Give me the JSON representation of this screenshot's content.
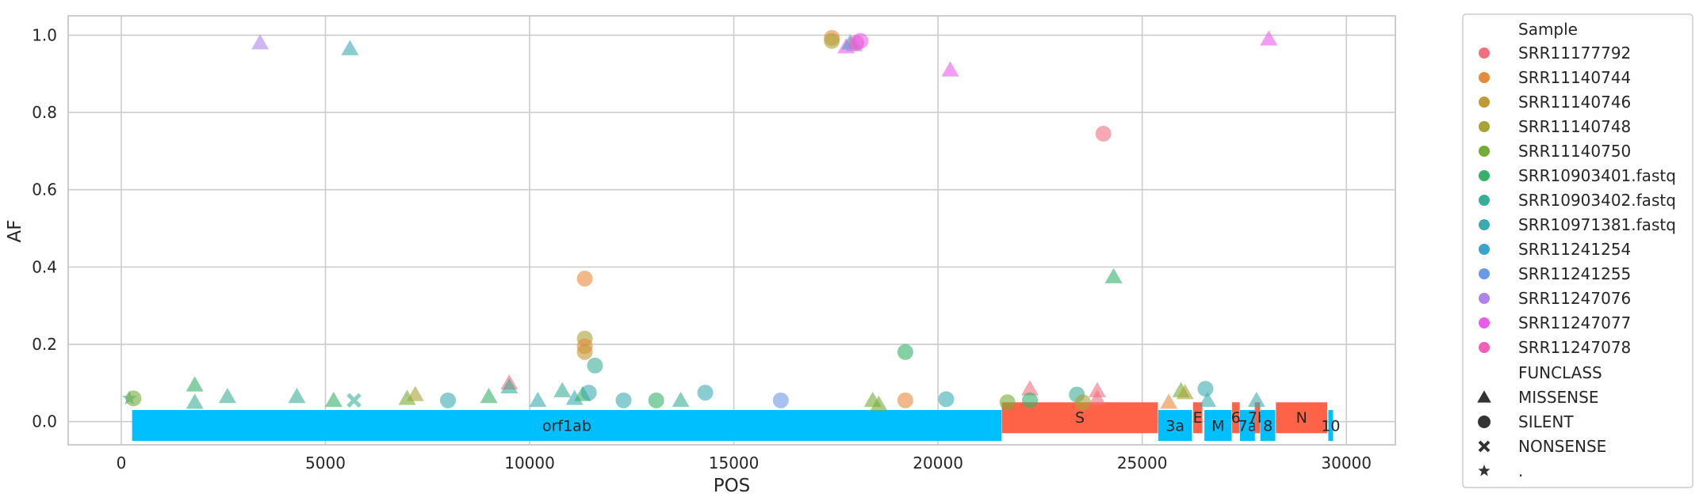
{
  "colors": {
    "SRR11177792": "#f0707f",
    "SRR11140744": "#e88a3a",
    "SRR11140746": "#c29a35",
    "SRR11140748": "#a8a336",
    "SRR11140750": "#74ac36",
    "SRR10903401.fastq": "#36b169",
    "SRR10903402.fastq": "#38ae98",
    "SRR10971381.fastq": "#3aabb0",
    "SRR11241254": "#3ba4cc",
    "SRR11241255": "#6b99e8",
    "SRR11247076": "#ae84ec",
    "SRR11247077": "#e95be8",
    "SRR11247078": "#f060b4",
    "gene_blue": "#00bfff",
    "gene_red": "#ff6347"
  },
  "chart_data": {
    "type": "scatter",
    "xlabel": "POS",
    "ylabel": "AF",
    "xlim": [
      -1300,
      31200
    ],
    "ylim": [
      -0.06,
      1.05
    ],
    "xticks": [
      0,
      5000,
      10000,
      15000,
      20000,
      25000,
      30000
    ],
    "xtick_labels": [
      "0",
      "5000",
      "10000",
      "15000",
      "20000",
      "25000",
      "30000"
    ],
    "yticks": [
      0.0,
      0.2,
      0.4,
      0.6,
      0.8,
      1.0
    ],
    "ytick_labels": [
      "0.0",
      "0.2",
      "0.4",
      "0.6",
      "0.8",
      "1.0"
    ],
    "grid": true,
    "legend": {
      "placement": "outside-right",
      "hue_title": "Sample",
      "hue": [
        "SRR11177792",
        "SRR11140744",
        "SRR11140746",
        "SRR11140748",
        "SRR11140750",
        "SRR10903401.fastq",
        "SRR10903402.fastq",
        "SRR10971381.fastq",
        "SRR11241254",
        "SRR11241255",
        "SRR11247076",
        "SRR11247077",
        "SRR11247078"
      ],
      "style_title": "FUNCLASS",
      "style": [
        {
          "label": "MISSENSE",
          "marker": "triangle"
        },
        {
          "label": "SILENT",
          "marker": "circle"
        },
        {
          "label": "NONSENSE",
          "marker": "x"
        },
        {
          "label": ".",
          "marker": "star"
        }
      ]
    },
    "genes": [
      {
        "name": "orf1ab",
        "start": 266,
        "end": 21555,
        "color": "blue",
        "row": "low"
      },
      {
        "name": "S",
        "start": 21563,
        "end": 25384,
        "color": "red",
        "row": "high"
      },
      {
        "name": "3a",
        "start": 25393,
        "end": 26220,
        "color": "blue",
        "row": "low"
      },
      {
        "name": "E",
        "start": 26245,
        "end": 26472,
        "color": "red",
        "row": "high"
      },
      {
        "name": "M",
        "start": 26523,
        "end": 27191,
        "color": "blue",
        "row": "low"
      },
      {
        "name": "6",
        "start": 27202,
        "end": 27387,
        "color": "red",
        "row": "high"
      },
      {
        "name": "7a",
        "start": 27394,
        "end": 27759,
        "color": "blue",
        "row": "low"
      },
      {
        "name": "7b",
        "start": 27756,
        "end": 27887,
        "color": "red",
        "row": "high"
      },
      {
        "name": "8",
        "start": 27894,
        "end": 28259,
        "color": "blue",
        "row": "low"
      },
      {
        "name": "N",
        "start": 28274,
        "end": 29533,
        "color": "red",
        "row": "high"
      },
      {
        "name": "10",
        "start": 29558,
        "end": 29674,
        "color": "blue",
        "row": "low"
      }
    ],
    "points": [
      {
        "x": 3400,
        "y": 0.98,
        "sample": "SRR11247076",
        "funclass": "MISSENSE"
      },
      {
        "x": 5600,
        "y": 0.965,
        "sample": "SRR10971381.fastq",
        "funclass": "MISSENSE"
      },
      {
        "x": 17400,
        "y": 0.993,
        "sample": "SRR11140744",
        "funclass": "SILENT"
      },
      {
        "x": 17400,
        "y": 0.985,
        "sample": "SRR11140748",
        "funclass": "SILENT"
      },
      {
        "x": 17750,
        "y": 0.97,
        "sample": "SRR11247077",
        "funclass": "MISSENSE"
      },
      {
        "x": 17850,
        "y": 0.98,
        "sample": "SRR11241254",
        "funclass": "MISSENSE"
      },
      {
        "x": 17950,
        "y": 0.975,
        "sample": "SRR11247076",
        "funclass": "MISSENSE"
      },
      {
        "x": 18000,
        "y": 0.98,
        "sample": "SRR11247078",
        "funclass": "SILENT"
      },
      {
        "x": 18100,
        "y": 0.985,
        "sample": "SRR11247077",
        "funclass": "SILENT"
      },
      {
        "x": 20300,
        "y": 0.91,
        "sample": "SRR11247077",
        "funclass": "MISSENSE"
      },
      {
        "x": 28100,
        "y": 0.99,
        "sample": "SRR11247077",
        "funclass": "MISSENSE"
      },
      {
        "x": 24050,
        "y": 0.745,
        "sample": "SRR11177792",
        "funclass": "SILENT"
      },
      {
        "x": 24300,
        "y": 0.375,
        "sample": "SRR10903401.fastq",
        "funclass": "MISSENSE"
      },
      {
        "x": 11350,
        "y": 0.37,
        "sample": "SRR11140744",
        "funclass": "SILENT"
      },
      {
        "x": 11350,
        "y": 0.215,
        "sample": "SRR11140748",
        "funclass": "SILENT"
      },
      {
        "x": 11350,
        "y": 0.195,
        "sample": "SRR11140744",
        "funclass": "SILENT"
      },
      {
        "x": 11350,
        "y": 0.18,
        "sample": "SRR11140746",
        "funclass": "SILENT"
      },
      {
        "x": 11600,
        "y": 0.145,
        "sample": "SRR10903402.fastq",
        "funclass": "SILENT"
      },
      {
        "x": 19200,
        "y": 0.18,
        "sample": "SRR10903401.fastq",
        "funclass": "SILENT"
      },
      {
        "x": 200,
        "y": 0.06,
        "sample": "SRR10971381.fastq",
        "funclass": "."
      },
      {
        "x": 300,
        "y": 0.06,
        "sample": "SRR11140750",
        "funclass": "SILENT"
      },
      {
        "x": 1800,
        "y": 0.095,
        "sample": "SRR10903401.fastq",
        "funclass": "MISSENSE"
      },
      {
        "x": 1800,
        "y": 0.05,
        "sample": "SRR10903402.fastq",
        "funclass": "MISSENSE"
      },
      {
        "x": 2600,
        "y": 0.065,
        "sample": "SRR10903402.fastq",
        "funclass": "MISSENSE"
      },
      {
        "x": 4300,
        "y": 0.065,
        "sample": "SRR10903402.fastq",
        "funclass": "MISSENSE"
      },
      {
        "x": 5200,
        "y": 0.055,
        "sample": "SRR10903401.fastq",
        "funclass": "MISSENSE"
      },
      {
        "x": 5700,
        "y": 0.055,
        "sample": "SRR10903402.fastq",
        "funclass": "NONSENSE"
      },
      {
        "x": 7000,
        "y": 0.06,
        "sample": "SRR11140750",
        "funclass": "MISSENSE"
      },
      {
        "x": 7200,
        "y": 0.07,
        "sample": "SRR11140748",
        "funclass": "MISSENSE"
      },
      {
        "x": 8000,
        "y": 0.055,
        "sample": "SRR10971381.fastq",
        "funclass": "SILENT"
      },
      {
        "x": 9000,
        "y": 0.065,
        "sample": "SRR10903401.fastq",
        "funclass": "MISSENSE"
      },
      {
        "x": 9500,
        "y": 0.1,
        "sample": "SRR11177792",
        "funclass": "MISSENSE"
      },
      {
        "x": 9500,
        "y": 0.09,
        "sample": "SRR10903402.fastq",
        "funclass": "MISSENSE"
      },
      {
        "x": 10200,
        "y": 0.055,
        "sample": "SRR10971381.fastq",
        "funclass": "MISSENSE"
      },
      {
        "x": 10800,
        "y": 0.08,
        "sample": "SRR10903402.fastq",
        "funclass": "MISSENSE"
      },
      {
        "x": 11100,
        "y": 0.06,
        "sample": "SRR10971381.fastq",
        "funclass": "MISSENSE"
      },
      {
        "x": 11300,
        "y": 0.07,
        "sample": "SRR10903401.fastq",
        "funclass": "MISSENSE"
      },
      {
        "x": 11450,
        "y": 0.075,
        "sample": "SRR10971381.fastq",
        "funclass": "SILENT"
      },
      {
        "x": 12300,
        "y": 0.055,
        "sample": "SRR10971381.fastq",
        "funclass": "SILENT"
      },
      {
        "x": 13100,
        "y": 0.055,
        "sample": "SRR10903401.fastq",
        "funclass": "SILENT"
      },
      {
        "x": 13700,
        "y": 0.055,
        "sample": "SRR10903402.fastq",
        "funclass": "MISSENSE"
      },
      {
        "x": 14300,
        "y": 0.075,
        "sample": "SRR10971381.fastq",
        "funclass": "SILENT"
      },
      {
        "x": 16150,
        "y": 0.055,
        "sample": "SRR11241255",
        "funclass": "SILENT"
      },
      {
        "x": 18400,
        "y": 0.055,
        "sample": "SRR11140750",
        "funclass": "MISSENSE"
      },
      {
        "x": 18550,
        "y": 0.045,
        "sample": "SRR11140750",
        "funclass": "MISSENSE"
      },
      {
        "x": 19200,
        "y": 0.055,
        "sample": "SRR11140744",
        "funclass": "SILENT"
      },
      {
        "x": 20200,
        "y": 0.058,
        "sample": "SRR10971381.fastq",
        "funclass": "SILENT"
      },
      {
        "x": 21700,
        "y": 0.05,
        "sample": "SRR11140750",
        "funclass": "SILENT"
      },
      {
        "x": 22250,
        "y": 0.085,
        "sample": "SRR11177792",
        "funclass": "MISSENSE"
      },
      {
        "x": 22250,
        "y": 0.055,
        "sample": "SRR10903401.fastq",
        "funclass": "SILENT"
      },
      {
        "x": 23400,
        "y": 0.07,
        "sample": "SRR10903402.fastq",
        "funclass": "SILENT"
      },
      {
        "x": 23550,
        "y": 0.05,
        "sample": "SRR11140748",
        "funclass": "SILENT"
      },
      {
        "x": 23900,
        "y": 0.08,
        "sample": "SRR11177792",
        "funclass": "MISSENSE"
      },
      {
        "x": 23900,
        "y": 0.06,
        "sample": "SRR11177792",
        "funclass": "MISSENSE"
      },
      {
        "x": 25650,
        "y": 0.05,
        "sample": "SRR11140744",
        "funclass": "MISSENSE"
      },
      {
        "x": 25950,
        "y": 0.08,
        "sample": "SRR11140750",
        "funclass": "MISSENSE"
      },
      {
        "x": 26050,
        "y": 0.075,
        "sample": "SRR11140748",
        "funclass": "MISSENSE"
      },
      {
        "x": 26550,
        "y": 0.085,
        "sample": "SRR10971381.fastq",
        "funclass": "SILENT"
      },
      {
        "x": 26600,
        "y": 0.055,
        "sample": "SRR10971381.fastq",
        "funclass": "MISSENSE"
      },
      {
        "x": 27800,
        "y": 0.055,
        "sample": "SRR10971381.fastq",
        "funclass": "MISSENSE"
      }
    ]
  }
}
